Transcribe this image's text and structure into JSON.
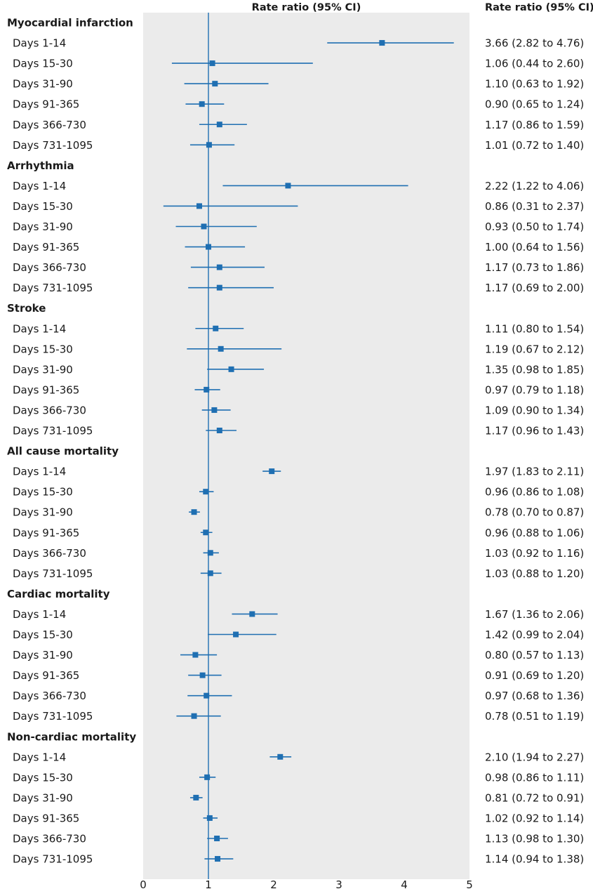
{
  "chart_data": {
    "type": "forest",
    "header_plot": "Rate ratio (95% CI)",
    "header_values": "Rate ratio (95% CI)",
    "xlim": [
      0,
      5
    ],
    "x_ticks": [
      "0",
      "1",
      "2",
      "3",
      "4",
      "5"
    ],
    "reference_line": 1,
    "colors": {
      "marker": "#1f6fb2",
      "panel": "#ebebeb"
    },
    "groups": [
      {
        "name": "Myocardial infarction",
        "rows": [
          {
            "label": "Days 1-14",
            "rr": 3.66,
            "lo": 2.82,
            "hi": 4.76,
            "text": "3.66 (2.82 to 4.76)"
          },
          {
            "label": "Days 15-30",
            "rr": 1.06,
            "lo": 0.44,
            "hi": 2.6,
            "text": "1.06 (0.44 to 2.60)"
          },
          {
            "label": "Days 31-90",
            "rr": 1.1,
            "lo": 0.63,
            "hi": 1.92,
            "text": "1.10 (0.63 to 1.92)"
          },
          {
            "label": "Days 91-365",
            "rr": 0.9,
            "lo": 0.65,
            "hi": 1.24,
            "text": "0.90 (0.65 to 1.24)"
          },
          {
            "label": "Days 366-730",
            "rr": 1.17,
            "lo": 0.86,
            "hi": 1.59,
            "text": "1.17 (0.86 to 1.59)"
          },
          {
            "label": "Days 731-1095",
            "rr": 1.01,
            "lo": 0.72,
            "hi": 1.4,
            "text": "1.01 (0.72 to 1.40)"
          }
        ]
      },
      {
        "name": "Arrhythmia",
        "rows": [
          {
            "label": "Days 1-14",
            "rr": 2.22,
            "lo": 1.22,
            "hi": 4.06,
            "text": "2.22 (1.22 to 4.06)"
          },
          {
            "label": "Days 15-30",
            "rr": 0.86,
            "lo": 0.31,
            "hi": 2.37,
            "text": "0.86 (0.31 to 2.37)"
          },
          {
            "label": "Days 31-90",
            "rr": 0.93,
            "lo": 0.5,
            "hi": 1.74,
            "text": "0.93 (0.50 to 1.74)"
          },
          {
            "label": "Days 91-365",
            "rr": 1.0,
            "lo": 0.64,
            "hi": 1.56,
            "text": "1.00 (0.64 to 1.56)"
          },
          {
            "label": "Days 366-730",
            "rr": 1.17,
            "lo": 0.73,
            "hi": 1.86,
            "text": "1.17 (0.73 to 1.86)"
          },
          {
            "label": "Days 731-1095",
            "rr": 1.17,
            "lo": 0.69,
            "hi": 2.0,
            "text": "1.17 (0.69 to 2.00)"
          }
        ]
      },
      {
        "name": "Stroke",
        "rows": [
          {
            "label": "Days 1-14",
            "rr": 1.11,
            "lo": 0.8,
            "hi": 1.54,
            "text": "1.11 (0.80 to 1.54)"
          },
          {
            "label": "Days 15-30",
            "rr": 1.19,
            "lo": 0.67,
            "hi": 2.12,
            "text": "1.19 (0.67 to 2.12)"
          },
          {
            "label": "Days 31-90",
            "rr": 1.35,
            "lo": 0.98,
            "hi": 1.85,
            "text": "1.35 (0.98 to 1.85)"
          },
          {
            "label": "Days 91-365",
            "rr": 0.97,
            "lo": 0.79,
            "hi": 1.18,
            "text": "0.97 (0.79 to 1.18)"
          },
          {
            "label": "Days 366-730",
            "rr": 1.09,
            "lo": 0.9,
            "hi": 1.34,
            "text": "1.09 (0.90 to 1.34)"
          },
          {
            "label": "Days 731-1095",
            "rr": 1.17,
            "lo": 0.96,
            "hi": 1.43,
            "text": "1.17 (0.96 to 1.43)"
          }
        ]
      },
      {
        "name": "All cause mortality",
        "rows": [
          {
            "label": "Days 1-14",
            "rr": 1.97,
            "lo": 1.83,
            "hi": 2.11,
            "text": "1.97 (1.83 to 2.11)"
          },
          {
            "label": "Days 15-30",
            "rr": 0.96,
            "lo": 0.86,
            "hi": 1.08,
            "text": "0.96 (0.86 to 1.08)"
          },
          {
            "label": "Days 31-90",
            "rr": 0.78,
            "lo": 0.7,
            "hi": 0.87,
            "text": "0.78 (0.70 to 0.87)"
          },
          {
            "label": "Days 91-365",
            "rr": 0.96,
            "lo": 0.88,
            "hi": 1.06,
            "text": "0.96 (0.88 to 1.06)"
          },
          {
            "label": "Days 366-730",
            "rr": 1.03,
            "lo": 0.92,
            "hi": 1.16,
            "text": "1.03 (0.92 to 1.16)"
          },
          {
            "label": "Days 731-1095",
            "rr": 1.03,
            "lo": 0.88,
            "hi": 1.2,
            "text": "1.03 (0.88 to 1.20)"
          }
        ]
      },
      {
        "name": "Cardiac mortality",
        "rows": [
          {
            "label": "Days 1-14",
            "rr": 1.67,
            "lo": 1.36,
            "hi": 2.06,
            "text": "1.67 (1.36 to 2.06)"
          },
          {
            "label": "Days 15-30",
            "rr": 1.42,
            "lo": 0.99,
            "hi": 2.04,
            "text": "1.42 (0.99 to 2.04)"
          },
          {
            "label": "Days 31-90",
            "rr": 0.8,
            "lo": 0.57,
            "hi": 1.13,
            "text": "0.80 (0.57 to 1.13)"
          },
          {
            "label": "Days 91-365",
            "rr": 0.91,
            "lo": 0.69,
            "hi": 1.2,
            "text": "0.91 (0.69 to 1.20)"
          },
          {
            "label": "Days 366-730",
            "rr": 0.97,
            "lo": 0.68,
            "hi": 1.36,
            "text": "0.97 (0.68 to 1.36)"
          },
          {
            "label": "Days 731-1095",
            "rr": 0.78,
            "lo": 0.51,
            "hi": 1.19,
            "text": "0.78 (0.51 to 1.19)"
          }
        ]
      },
      {
        "name": "Non-cardiac mortality",
        "rows": [
          {
            "label": "Days 1-14",
            "rr": 2.1,
            "lo": 1.94,
            "hi": 2.27,
            "text": "2.10 (1.94 to 2.27)"
          },
          {
            "label": "Days 15-30",
            "rr": 0.98,
            "lo": 0.86,
            "hi": 1.11,
            "text": "0.98 (0.86 to 1.11)"
          },
          {
            "label": "Days 31-90",
            "rr": 0.81,
            "lo": 0.72,
            "hi": 0.91,
            "text": "0.81 (0.72 to 0.91)"
          },
          {
            "label": "Days 91-365",
            "rr": 1.02,
            "lo": 0.92,
            "hi": 1.14,
            "text": "1.02 (0.92 to 1.14)"
          },
          {
            "label": "Days 366-730",
            "rr": 1.13,
            "lo": 0.98,
            "hi": 1.3,
            "text": "1.13 (0.98 to 1.30)"
          },
          {
            "label": "Days 731-1095",
            "rr": 1.14,
            "lo": 0.94,
            "hi": 1.38,
            "text": "1.14 (0.94 to 1.38)"
          }
        ]
      }
    ]
  }
}
